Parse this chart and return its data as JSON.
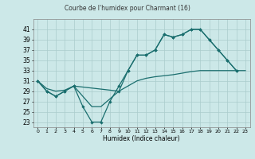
{
  "title": "Courbe de l'humidex pour Charmant (16)",
  "xlabel": "Humidex (Indice chaleur)",
  "bg_color": "#cce8e8",
  "grid_color": "#aacccc",
  "line_color": "#1a6e6e",
  "xlim": [
    -0.5,
    23.5
  ],
  "ylim": [
    22,
    43
  ],
  "yticks": [
    23,
    25,
    27,
    29,
    31,
    33,
    35,
    37,
    39,
    41
  ],
  "xticks": [
    0,
    1,
    2,
    3,
    4,
    5,
    6,
    7,
    8,
    9,
    10,
    11,
    12,
    13,
    14,
    15,
    16,
    17,
    18,
    19,
    20,
    21,
    22,
    23
  ],
  "line1_x": [
    0,
    1,
    2,
    3,
    4,
    5,
    6,
    7,
    8,
    9,
    10,
    11,
    12,
    13,
    14,
    15,
    16,
    17,
    18,
    19,
    20,
    21,
    22
  ],
  "line1_y": [
    31,
    29,
    28,
    29,
    30,
    26,
    23,
    23,
    27,
    30,
    33,
    36,
    36,
    37,
    40,
    39.5,
    40,
    41,
    41,
    39,
    37,
    35,
    33
  ],
  "line2_x": [
    0,
    1,
    2,
    3,
    4,
    9,
    10,
    11,
    12,
    13,
    14,
    15,
    16,
    17,
    18,
    19,
    20,
    21,
    22
  ],
  "line2_y": [
    31,
    29,
    28,
    29,
    30,
    29,
    33,
    36,
    36,
    37,
    40,
    39.5,
    40,
    41,
    41,
    39,
    37,
    35,
    33
  ],
  "line3_full_x": [
    0,
    1,
    2,
    3,
    4,
    5,
    6,
    7,
    8,
    9,
    10,
    11,
    12,
    13,
    14,
    15,
    16,
    17,
    18,
    19,
    20,
    21,
    22,
    23
  ],
  "line3_full_y": [
    31,
    29.5,
    29,
    29.2,
    30,
    28,
    26,
    26,
    27.5,
    29,
    30,
    31,
    31.5,
    31.8,
    32,
    32.2,
    32.5,
    32.8,
    33,
    33,
    33,
    33,
    33,
    33
  ]
}
